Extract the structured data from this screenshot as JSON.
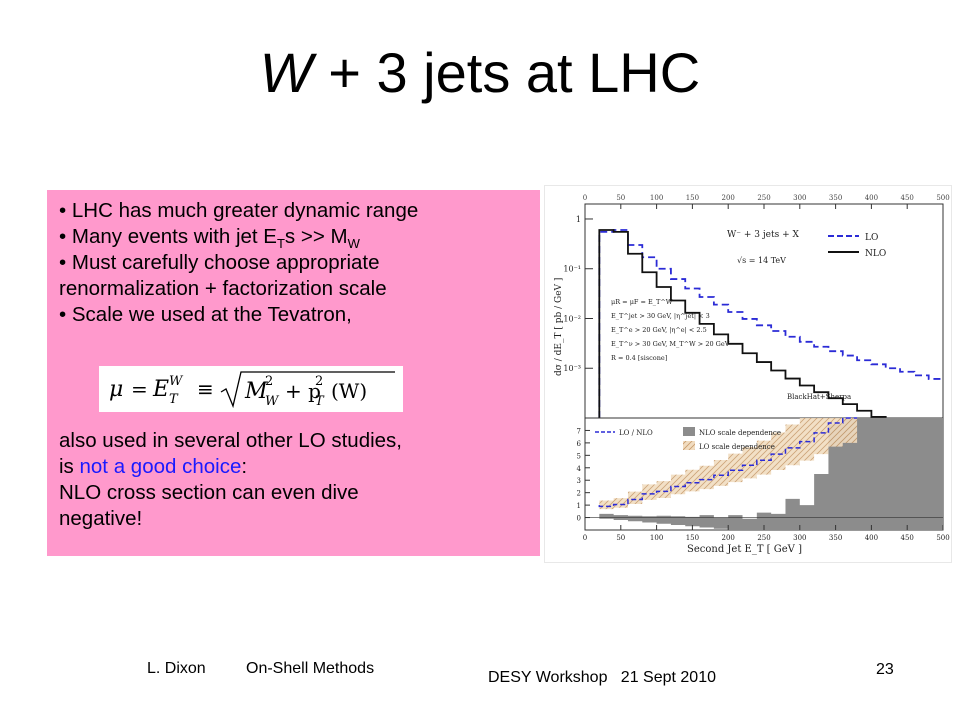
{
  "slide": {
    "title_w": "W",
    "title_rest": "+ 3 jets at LHC",
    "bullets": {
      "b1": "• LHC has much greater dynamic range",
      "b2_pre": "• Many events with jet E",
      "b2_sub": "T",
      "b2_mid": "s >> M",
      "b2_sub2": "W",
      "b3a": "• Must carefully choose appropriate",
      "b3b": "renormalization + factorization scale",
      "b4": "• Scale we used at the Tevatron,"
    },
    "formula": {
      "mu": "μ",
      "eq": "=",
      "E": "E",
      "sup": "W",
      "sub": "T",
      "equiv": "≡",
      "inner": "M",
      "inner_sub": "W",
      "sq": "2",
      "plus": "+ p",
      "pt_sub": "T",
      "pt_sup": "2",
      "arg": "(W)"
    },
    "para": {
      "l1": "also used in several other LO studies,",
      "l2_pre": "is ",
      "l2_blue": "not a good choice",
      "l2_post": ":",
      "l3": "NLO cross section can even dive",
      "l4": "negative!"
    },
    "footer": {
      "author": "L. Dixon",
      "talk": "On-Shell Methods",
      "event": "DESY Workshop   21 Sept 2010",
      "page": "23"
    }
  },
  "chart_data": {
    "type": "line",
    "top_panel": {
      "legend_title": "W⁻ + 3 jets + X",
      "energy_label": "√s = 14 TeV",
      "cuts": [
        "μR = μF = E_T^W",
        "E_T^jet > 30 GeV, |η^jet| < 3",
        "E_T^e > 20 GeV, |η^e| < 2.5",
        "E_T^ν > 30 GeV, M_T^W > 20 GeV",
        "R = 0.4  [siscone]"
      ],
      "credit": "BlackHat+Sherpa",
      "ylabel": "dσ / dE_T  [ pb / GeV ]",
      "yscale": "log",
      "ylim": [
        0.0001,
        2
      ],
      "ytick_labels": [
        "1",
        "10⁻¹",
        "10⁻²",
        "10⁻³"
      ],
      "x_bin_edges": [
        20,
        40,
        60,
        80,
        100,
        120,
        140,
        160,
        180,
        200,
        220,
        240,
        260,
        280,
        300,
        320,
        340,
        360,
        380,
        400,
        420,
        440,
        460,
        480,
        500
      ],
      "series": [
        {
          "name": "LO",
          "color": "#2b2bd6",
          "dash": true,
          "values": [
            0.55,
            0.6,
            0.3,
            0.17,
            0.1,
            0.062,
            0.04,
            0.027,
            0.019,
            0.0135,
            0.0098,
            0.0073,
            0.0056,
            0.0043,
            0.0034,
            0.0027,
            0.0022,
            0.0018,
            0.00145,
            0.0012,
            0.001,
            0.00085,
            0.00072,
            0.00061
          ]
        },
        {
          "name": "NLO",
          "color": "#111111",
          "dash": false,
          "values": [
            0.6,
            0.55,
            0.2,
            0.085,
            0.043,
            0.023,
            0.013,
            0.0078,
            0.0048,
            0.0031,
            0.002,
            0.00133,
            0.0009,
            0.00062,
            0.00045,
            0.00033,
            0.00025,
            0.00019,
            0.00014,
            0.000105
          ]
        }
      ]
    },
    "bottom_panel": {
      "legend": [
        "LO / NLO",
        "NLO scale dependence",
        "LO scale dependence"
      ],
      "xlabel": "Second Jet E_T  [ GeV ]",
      "ylim": [
        -1,
        8
      ],
      "ytick_labels": [
        "0",
        "1",
        "2",
        "3",
        "4",
        "5",
        "6",
        "7"
      ],
      "xlim": [
        0,
        500
      ],
      "xtick_labels": [
        "0",
        "50",
        "100",
        "150",
        "200",
        "250",
        "300",
        "350",
        "400",
        "450",
        "500"
      ],
      "lo_over_nlo": [
        0.9,
        1.05,
        1.45,
        1.9,
        2.1,
        2.5,
        2.8,
        3.05,
        3.4,
        3.8,
        4.2,
        4.6,
        5.1,
        5.6,
        6.1,
        6.8,
        7.6,
        8
      ]
    }
  }
}
